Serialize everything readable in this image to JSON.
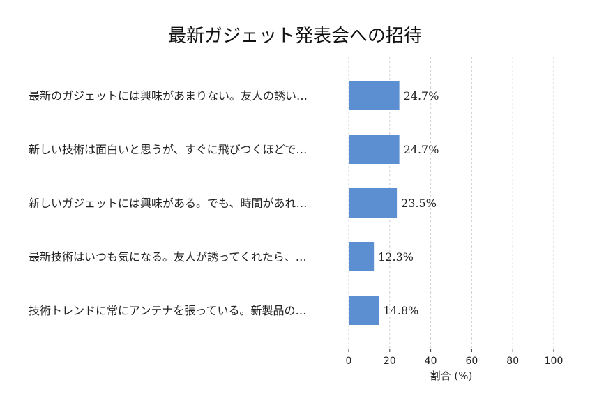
{
  "chart_data": {
    "type": "bar",
    "orientation": "horizontal",
    "title": "最新ガジェット発表会への招待",
    "xlabel": "割合 (%)",
    "ylabel": "",
    "xlim": [
      0,
      100
    ],
    "x_ticks": [
      0,
      20,
      40,
      60,
      80,
      100
    ],
    "grid": "vertical dashed",
    "categories": [
      "最新のガジェットには興味があまりない。友人の誘い…",
      "新しい技術は面白いと思うが、すぐに飛びつくほどで…",
      "新しいガジェットには興味がある。でも、時間があれ…",
      "最新技術はいつも気になる。友人が誘ってくれたら、…",
      "技術トレンドに常にアンテナを張っている。新製品の…"
    ],
    "values": [
      24.7,
      24.7,
      23.5,
      12.3,
      14.8
    ],
    "value_labels": [
      "24.7%",
      "24.7%",
      "23.5%",
      "12.3%",
      "14.8%"
    ],
    "bar_color": "#5b8fd1"
  }
}
